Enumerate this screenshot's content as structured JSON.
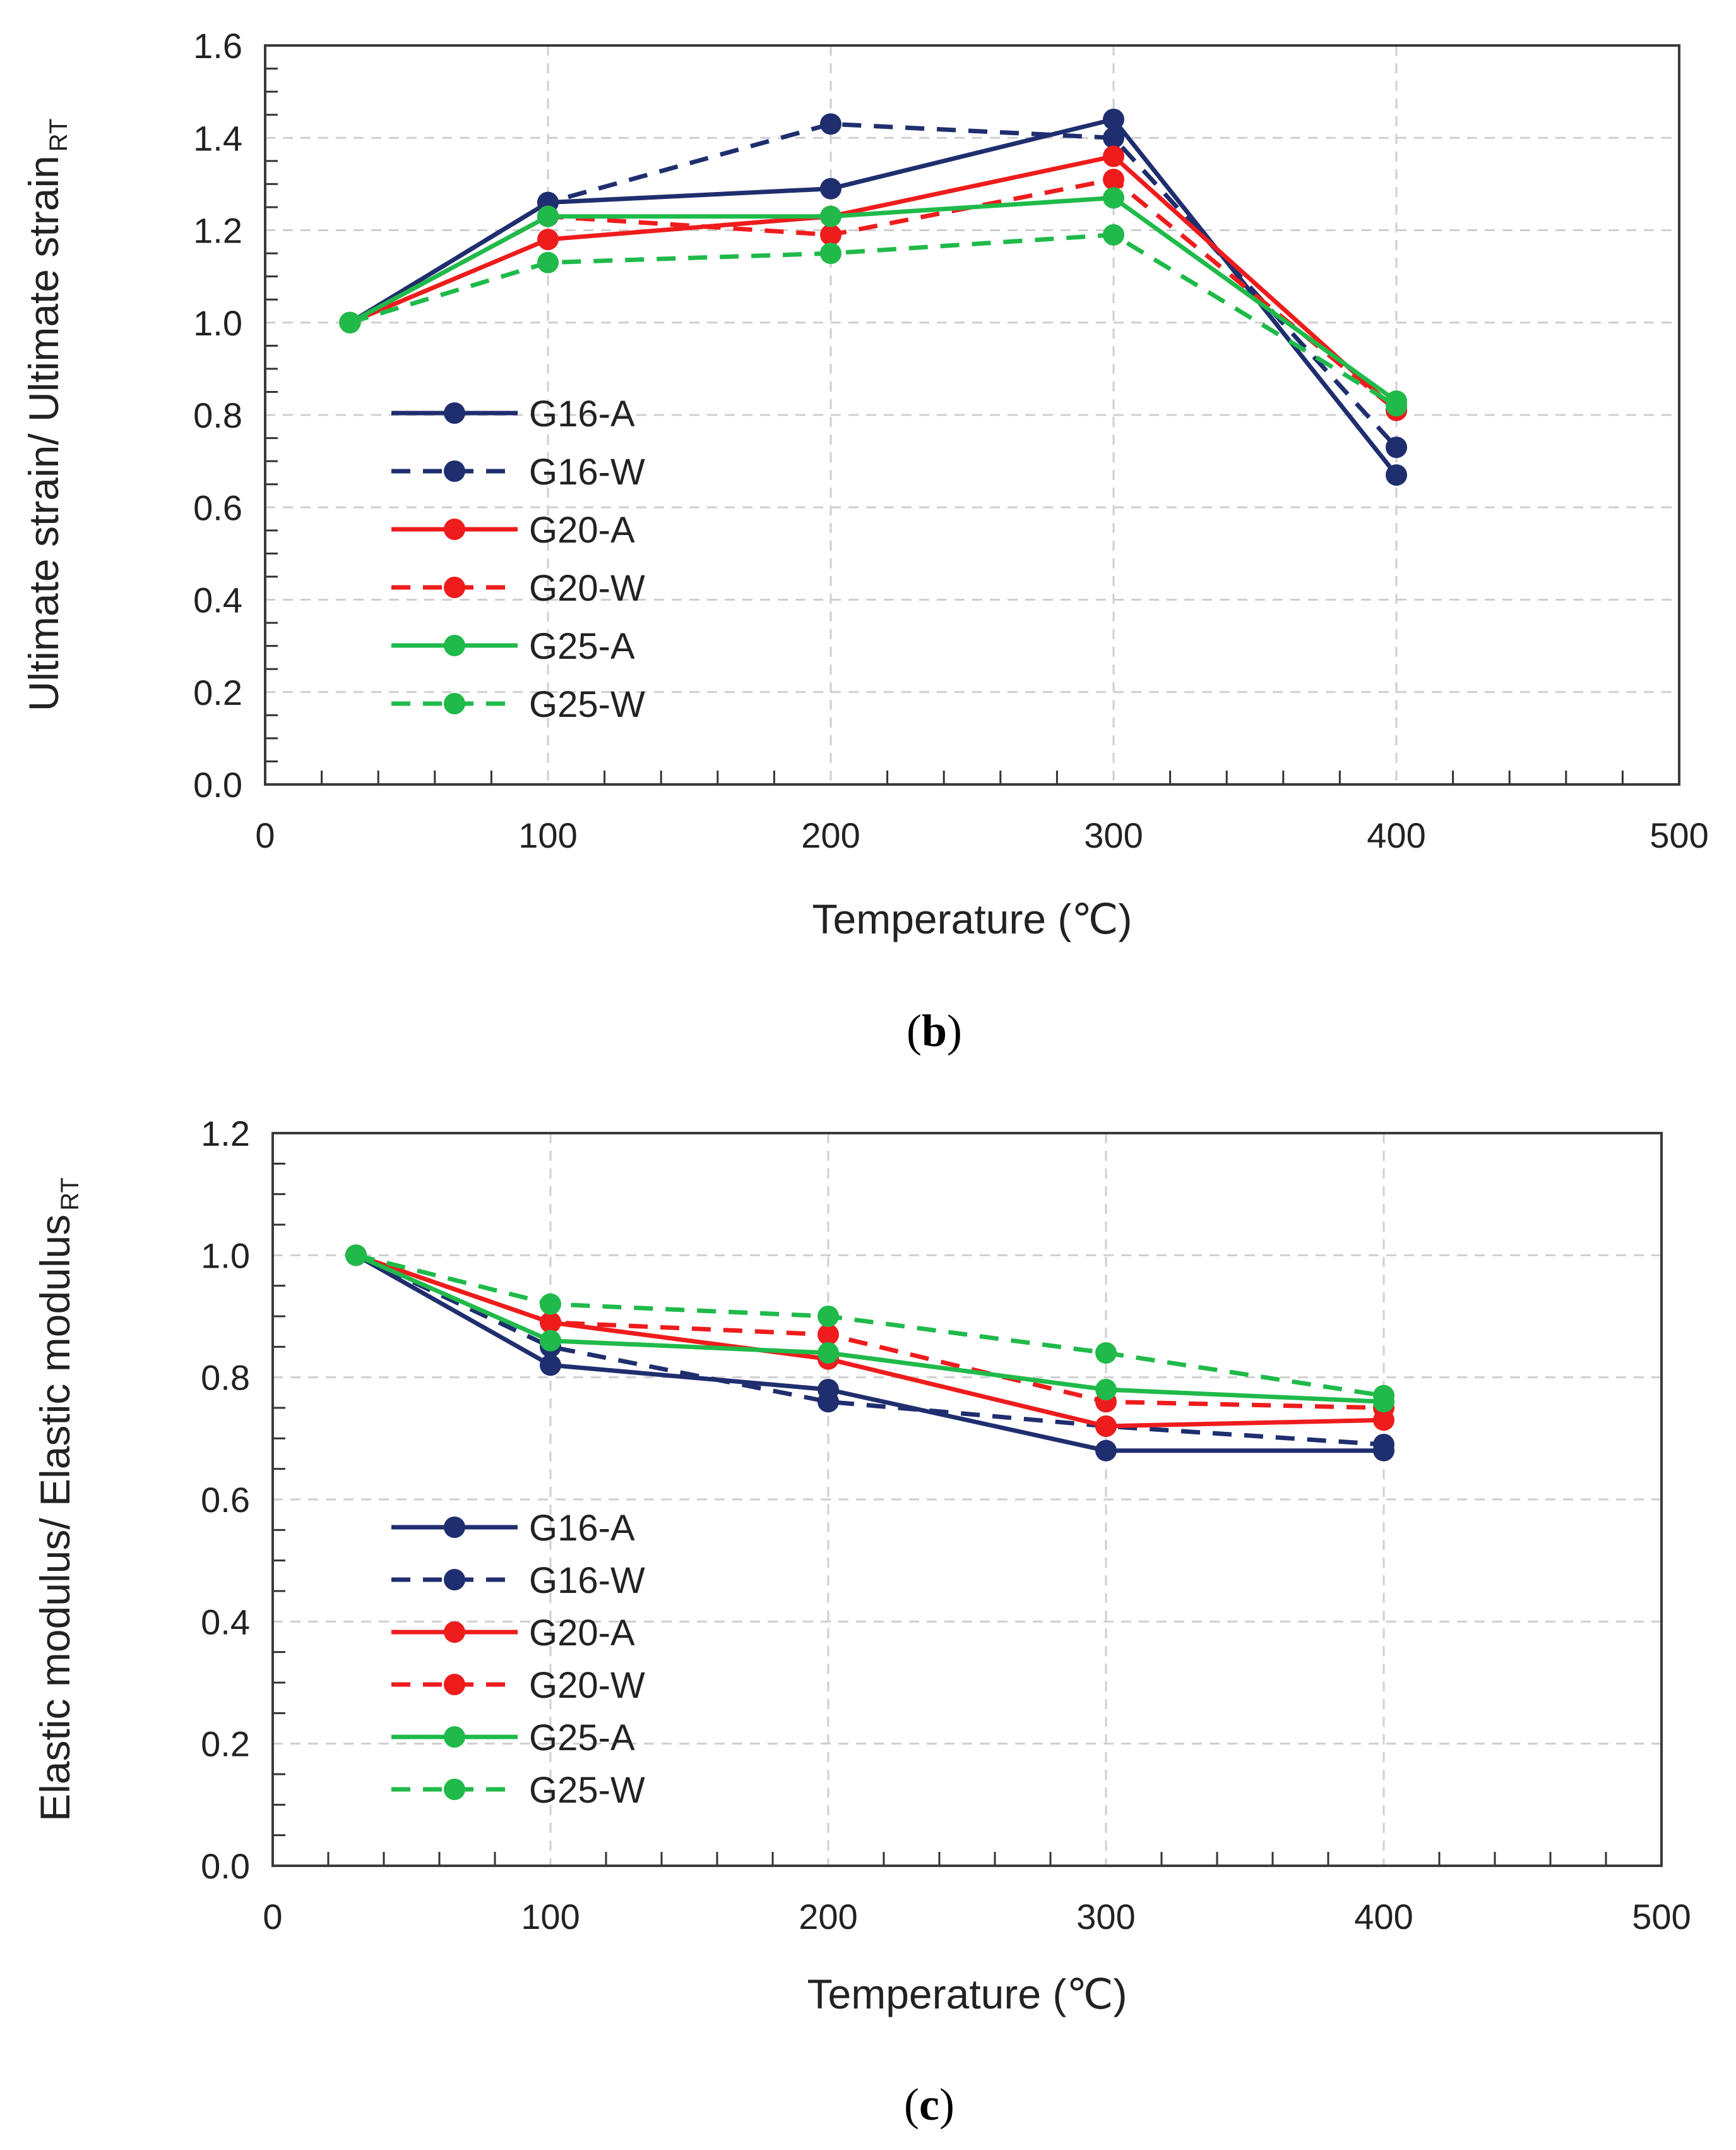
{
  "chart_data": [
    {
      "type": "line",
      "caption": {
        "open": "(",
        "letter": "b",
        "close": ")"
      },
      "xlabel": "Temperature (℃)",
      "ylabel": "Ultimate strain/ Ultimate strain",
      "ylabel_sub": "RT",
      "xlim": [
        0,
        500
      ],
      "ylim": [
        0,
        1.6
      ],
      "xticks": [
        "0",
        "100",
        "200",
        "300",
        "400",
        "500"
      ],
      "yticks": [
        "0.0",
        "0.2",
        "0.4",
        "0.6",
        "0.8",
        "1.0",
        "1.2",
        "1.4",
        "1.6"
      ],
      "grid": true,
      "legend": "left",
      "x": [
        30,
        100,
        200,
        300,
        400
      ],
      "series": [
        {
          "name": "G16-A",
          "color": "#1f2e6e",
          "dash": false,
          "values": [
            1.0,
            1.26,
            1.29,
            1.44,
            0.67
          ]
        },
        {
          "name": "G16-W",
          "color": "#1f2e6e",
          "dash": true,
          "values": [
            1.0,
            1.26,
            1.43,
            1.4,
            0.73
          ]
        },
        {
          "name": "G20-A",
          "color": "#ee1c1c",
          "dash": false,
          "values": [
            1.0,
            1.18,
            1.23,
            1.36,
            0.81
          ]
        },
        {
          "name": "G20-W",
          "color": "#ee1c1c",
          "dash": true,
          "values": [
            1.0,
            1.23,
            1.19,
            1.31,
            0.81
          ]
        },
        {
          "name": "G25-A",
          "color": "#1fba4a",
          "dash": false,
          "values": [
            1.0,
            1.23,
            1.23,
            1.27,
            0.83
          ]
        },
        {
          "name": "G25-W",
          "color": "#1fba4a",
          "dash": true,
          "values": [
            1.0,
            1.13,
            1.15,
            1.19,
            0.82
          ]
        }
      ]
    },
    {
      "type": "line",
      "caption": {
        "open": "(",
        "letter": "c",
        "close": ")"
      },
      "xlabel": "Temperature (℃)",
      "ylabel": "Elastic modulus/ Elastic modulus",
      "ylabel_sub": "RT",
      "xlim": [
        0,
        500
      ],
      "ylim": [
        0,
        1.2
      ],
      "xticks": [
        "0",
        "100",
        "200",
        "300",
        "400",
        "500"
      ],
      "yticks": [
        "0.0",
        "0.2",
        "0.4",
        "0.6",
        "0.8",
        "1.0",
        "1.2"
      ],
      "grid": true,
      "legend": "left",
      "x": [
        30,
        100,
        200,
        300,
        400
      ],
      "series": [
        {
          "name": "G16-A",
          "color": "#1f2e6e",
          "dash": false,
          "values": [
            1.0,
            0.82,
            0.78,
            0.68,
            0.68
          ]
        },
        {
          "name": "G16-W",
          "color": "#1f2e6e",
          "dash": true,
          "values": [
            1.0,
            0.85,
            0.76,
            0.72,
            0.69
          ]
        },
        {
          "name": "G20-A",
          "color": "#ee1c1c",
          "dash": false,
          "values": [
            1.0,
            0.89,
            0.83,
            0.72,
            0.73
          ]
        },
        {
          "name": "G20-W",
          "color": "#ee1c1c",
          "dash": true,
          "values": [
            1.0,
            0.89,
            0.87,
            0.76,
            0.75
          ]
        },
        {
          "name": "G25-A",
          "color": "#1fba4a",
          "dash": false,
          "values": [
            1.0,
            0.86,
            0.84,
            0.78,
            0.76
          ]
        },
        {
          "name": "G25-W",
          "color": "#1fba4a",
          "dash": true,
          "values": [
            1.0,
            0.92,
            0.9,
            0.84,
            0.77
          ]
        }
      ]
    }
  ]
}
